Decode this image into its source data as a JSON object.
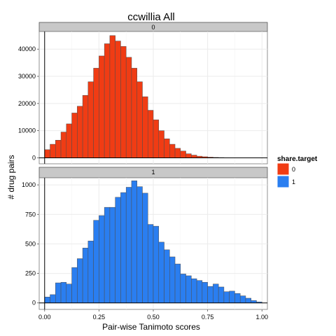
{
  "chart_data": {
    "type": "bar",
    "subtype": "faceted-histogram",
    "title": "ccwillia All",
    "xlabel": "Pair-wise Tanimoto scores",
    "ylabel": "# drug pairs",
    "legend": {
      "title": "share.target",
      "position": "right",
      "entries": [
        {
          "label": "0",
          "color": "#f03c14"
        },
        {
          "label": "1",
          "color": "#2a7ef0"
        }
      ]
    },
    "x_ticks": [
      "0.00",
      "0.25",
      "0.50",
      "0.75",
      "1.00"
    ],
    "x_tick_values": [
      0,
      0.25,
      0.5,
      0.75,
      1.0
    ],
    "xlim": [
      -0.025,
      1.025
    ],
    "bin_width": 0.025,
    "bin_starts": [
      0.0,
      0.025,
      0.05,
      0.075,
      0.1,
      0.125,
      0.15,
      0.175,
      0.2,
      0.225,
      0.25,
      0.275,
      0.3,
      0.325,
      0.35,
      0.375,
      0.4,
      0.425,
      0.45,
      0.475,
      0.5,
      0.525,
      0.55,
      0.575,
      0.6,
      0.625,
      0.65,
      0.675,
      0.7,
      0.725,
      0.75,
      0.775,
      0.8,
      0.825,
      0.85,
      0.875,
      0.9,
      0.925,
      0.95,
      0.975
    ],
    "grid": true,
    "facets": [
      {
        "strip_label": "0",
        "color": "#f03c14",
        "y_ticks": [
          "0",
          "10000",
          "20000",
          "30000",
          "40000"
        ],
        "y_tick_values": [
          0,
          10000,
          20000,
          30000,
          40000
        ],
        "ylim": [
          -2200,
          46500
        ],
        "values": [
          3000,
          5000,
          6500,
          9500,
          12500,
          16500,
          19000,
          23000,
          28000,
          33000,
          37500,
          42000,
          45000,
          43000,
          41000,
          37000,
          33000,
          28000,
          22500,
          17500,
          14000,
          10000,
          7000,
          5000,
          3500,
          2500,
          1500,
          1000,
          600,
          400,
          250,
          150,
          100,
          60,
          40,
          30,
          20,
          10,
          5,
          3
        ]
      },
      {
        "strip_label": "1",
        "color": "#2a7ef0",
        "y_ticks": [
          "0",
          "250",
          "500",
          "750",
          "1000"
        ],
        "y_tick_values": [
          0,
          250,
          500,
          750,
          1000
        ],
        "ylim": [
          -55,
          1060
        ],
        "values": [
          50,
          70,
          170,
          175,
          160,
          300,
          375,
          465,
          525,
          700,
          740,
          810,
          810,
          895,
          935,
          980,
          1035,
          985,
          930,
          665,
          650,
          515,
          450,
          390,
          330,
          245,
          230,
          205,
          190,
          175,
          140,
          160,
          135,
          95,
          100,
          80,
          60,
          40,
          20,
          8
        ]
      }
    ]
  }
}
